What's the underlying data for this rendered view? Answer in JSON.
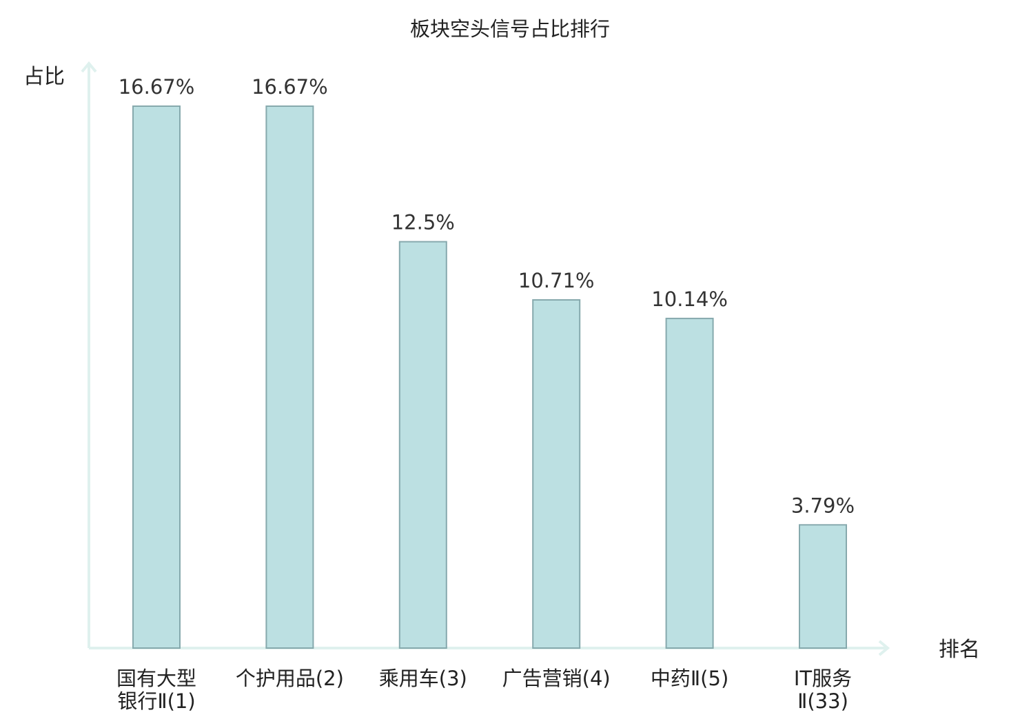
{
  "chart_data": {
    "type": "bar",
    "title": "板块空头信号占比排行",
    "ylabel": "占比",
    "xlabel": "排名",
    "ylim": [
      0,
      18
    ],
    "grid": false,
    "categories": [
      [
        "国有大型",
        "银行Ⅱ(1)"
      ],
      [
        "个护用品(2)"
      ],
      [
        "乘用车(3)"
      ],
      [
        "广告营销(4)"
      ],
      [
        "中药Ⅱ(5)"
      ],
      [
        "IT服务",
        "Ⅱ(33)"
      ]
    ],
    "values": [
      16.67,
      16.67,
      12.5,
      10.71,
      10.14,
      3.79
    ],
    "value_labels": [
      "16.67%",
      "16.67%",
      "12.5%",
      "10.71%",
      "10.14%",
      "3.79%"
    ],
    "highlight_index": 5
  },
  "colors": {
    "bar_fill": "#bce0e2",
    "bar_stroke": "#86a9ad",
    "axis": "#dff1ee",
    "text": "#222222",
    "highlight_text": "#e0202a"
  }
}
